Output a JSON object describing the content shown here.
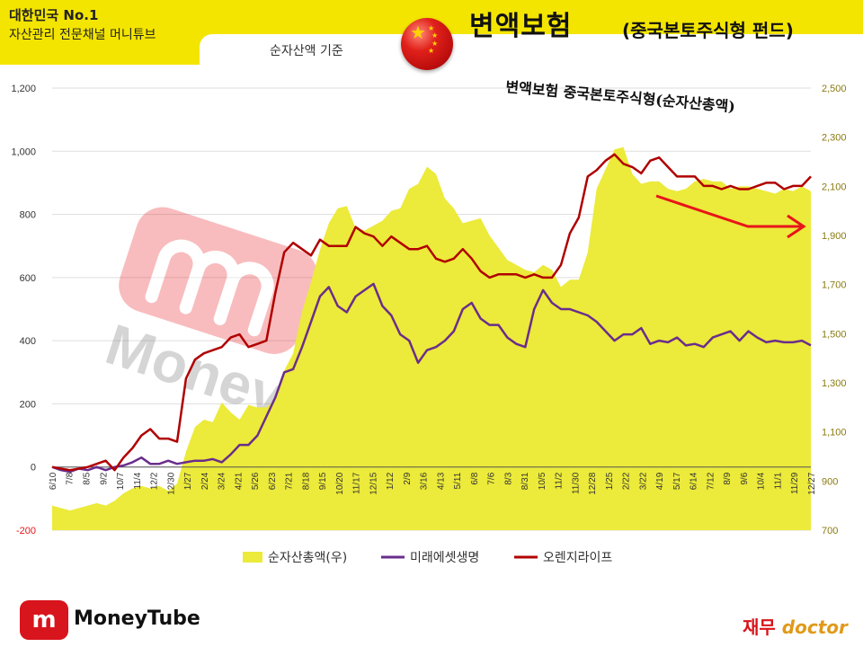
{
  "header": {
    "brand_line1": "대한민국 No.1",
    "brand_line2": "자산관리 전문채널 머니튜브",
    "basis": "순자산액 기준",
    "title": "변액보험",
    "subtitle": "(중국본토주식형 펀드)"
  },
  "footer": {
    "logo_text": "m",
    "brand": "MoneyTube",
    "doctor_a": "재무",
    "doctor_b": "doctor"
  },
  "colors": {
    "header_bg": "#f4e500",
    "area": "#ecea3a",
    "mirae": "#6a2d8c",
    "orange": "#b00000",
    "arrow": "#e8141a"
  },
  "chart_data": {
    "type": "line",
    "annotation": "변액보험 중국본토주식형(순자산총액)",
    "x_tick_labels": [
      "6/10",
      "7/8",
      "8/5",
      "9/2",
      "10/7",
      "11/4",
      "12/2",
      "12/30",
      "1/27",
      "2/24",
      "3/24",
      "4/21",
      "5/26",
      "6/23",
      "7/21",
      "8/18",
      "9/15",
      "10/20",
      "11/17",
      "12/15",
      "1/12",
      "2/9",
      "3/16",
      "4/13",
      "5/11",
      "6/8",
      "7/6",
      "8/3",
      "8/31",
      "10/5",
      "11/2",
      "11/30",
      "12/28",
      "1/25",
      "2/22",
      "3/22",
      "4/19",
      "5/17",
      "6/14",
      "7/12",
      "8/9",
      "9/6",
      "10/4",
      "11/1",
      "11/29",
      "12/27"
    ],
    "y_left": {
      "min": -200,
      "max": 1200,
      "ticks": [
        "-200",
        "0",
        "200",
        "400",
        "600",
        "800",
        "1,000",
        "1,200"
      ]
    },
    "y_right": {
      "min": 700,
      "max": 2500,
      "ticks": [
        "700",
        "900",
        "1,100",
        "1,300",
        "1,500",
        "1,700",
        "1,900",
        "2,100",
        "2,300",
        "2,500"
      ]
    },
    "series": [
      {
        "name": "순자산총액(우)",
        "axis": "right",
        "values": [
          800,
          790,
          780,
          790,
          800,
          810,
          800,
          820,
          850,
          870,
          880,
          870,
          880,
          860,
          890,
          1020,
          1120,
          1150,
          1140,
          1220,
          1180,
          1150,
          1210,
          1200,
          1200,
          1230,
          1350,
          1420,
          1590,
          1710,
          1840,
          1950,
          2010,
          2020,
          1930,
          1920,
          1940,
          1960,
          2000,
          2010,
          2090,
          2110,
          2180,
          2150,
          2050,
          2010,
          1950,
          1960,
          1970,
          1900,
          1850,
          1800,
          1780,
          1760,
          1750,
          1780,
          1760,
          1690,
          1720,
          1720,
          1830,
          2090,
          2170,
          2250,
          2260,
          2150,
          2110,
          2120,
          2120,
          2090,
          2080,
          2090,
          2120,
          2130,
          2120,
          2120,
          2090,
          2100,
          2100,
          2090,
          2080,
          2070,
          2090,
          2080,
          2100,
          2080
        ]
      },
      {
        "name": "미래에셋생명",
        "axis": "left",
        "values": [
          0,
          -10,
          -15,
          -5,
          -10,
          0,
          -10,
          0,
          5,
          15,
          30,
          10,
          10,
          20,
          10,
          15,
          20,
          20,
          25,
          15,
          40,
          70,
          70,
          100,
          160,
          220,
          300,
          310,
          380,
          460,
          540,
          570,
          510,
          490,
          540,
          560,
          580,
          510,
          480,
          420,
          400,
          330,
          370,
          380,
          400,
          430,
          500,
          520,
          470,
          450,
          450,
          410,
          390,
          380,
          500,
          560,
          520,
          500,
          500,
          490,
          480,
          460,
          430,
          400,
          420,
          420,
          440,
          390,
          400,
          395,
          410,
          385,
          390,
          380,
          410,
          420,
          430,
          400,
          430,
          410,
          395,
          400,
          395,
          395,
          400,
          385
        ]
      },
      {
        "name": "오렌지라이프",
        "axis": "left",
        "values": [
          0,
          -5,
          -10,
          -5,
          0,
          10,
          20,
          -10,
          30,
          60,
          100,
          120,
          90,
          90,
          80,
          280,
          340,
          360,
          370,
          380,
          410,
          420,
          380,
          390,
          400,
          550,
          680,
          710,
          690,
          670,
          720,
          700,
          700,
          700,
          760,
          740,
          730,
          700,
          730,
          710,
          690,
          690,
          700,
          660,
          650,
          660,
          690,
          660,
          620,
          600,
          610,
          610,
          610,
          600,
          610,
          600,
          600,
          640,
          740,
          790,
          920,
          940,
          970,
          990,
          960,
          950,
          930,
          970,
          980,
          950,
          920,
          920,
          920,
          890,
          890,
          880,
          890,
          880,
          880,
          890,
          900,
          900,
          880,
          890,
          890,
          920
        ]
      }
    ],
    "legend_position": "bottom"
  }
}
